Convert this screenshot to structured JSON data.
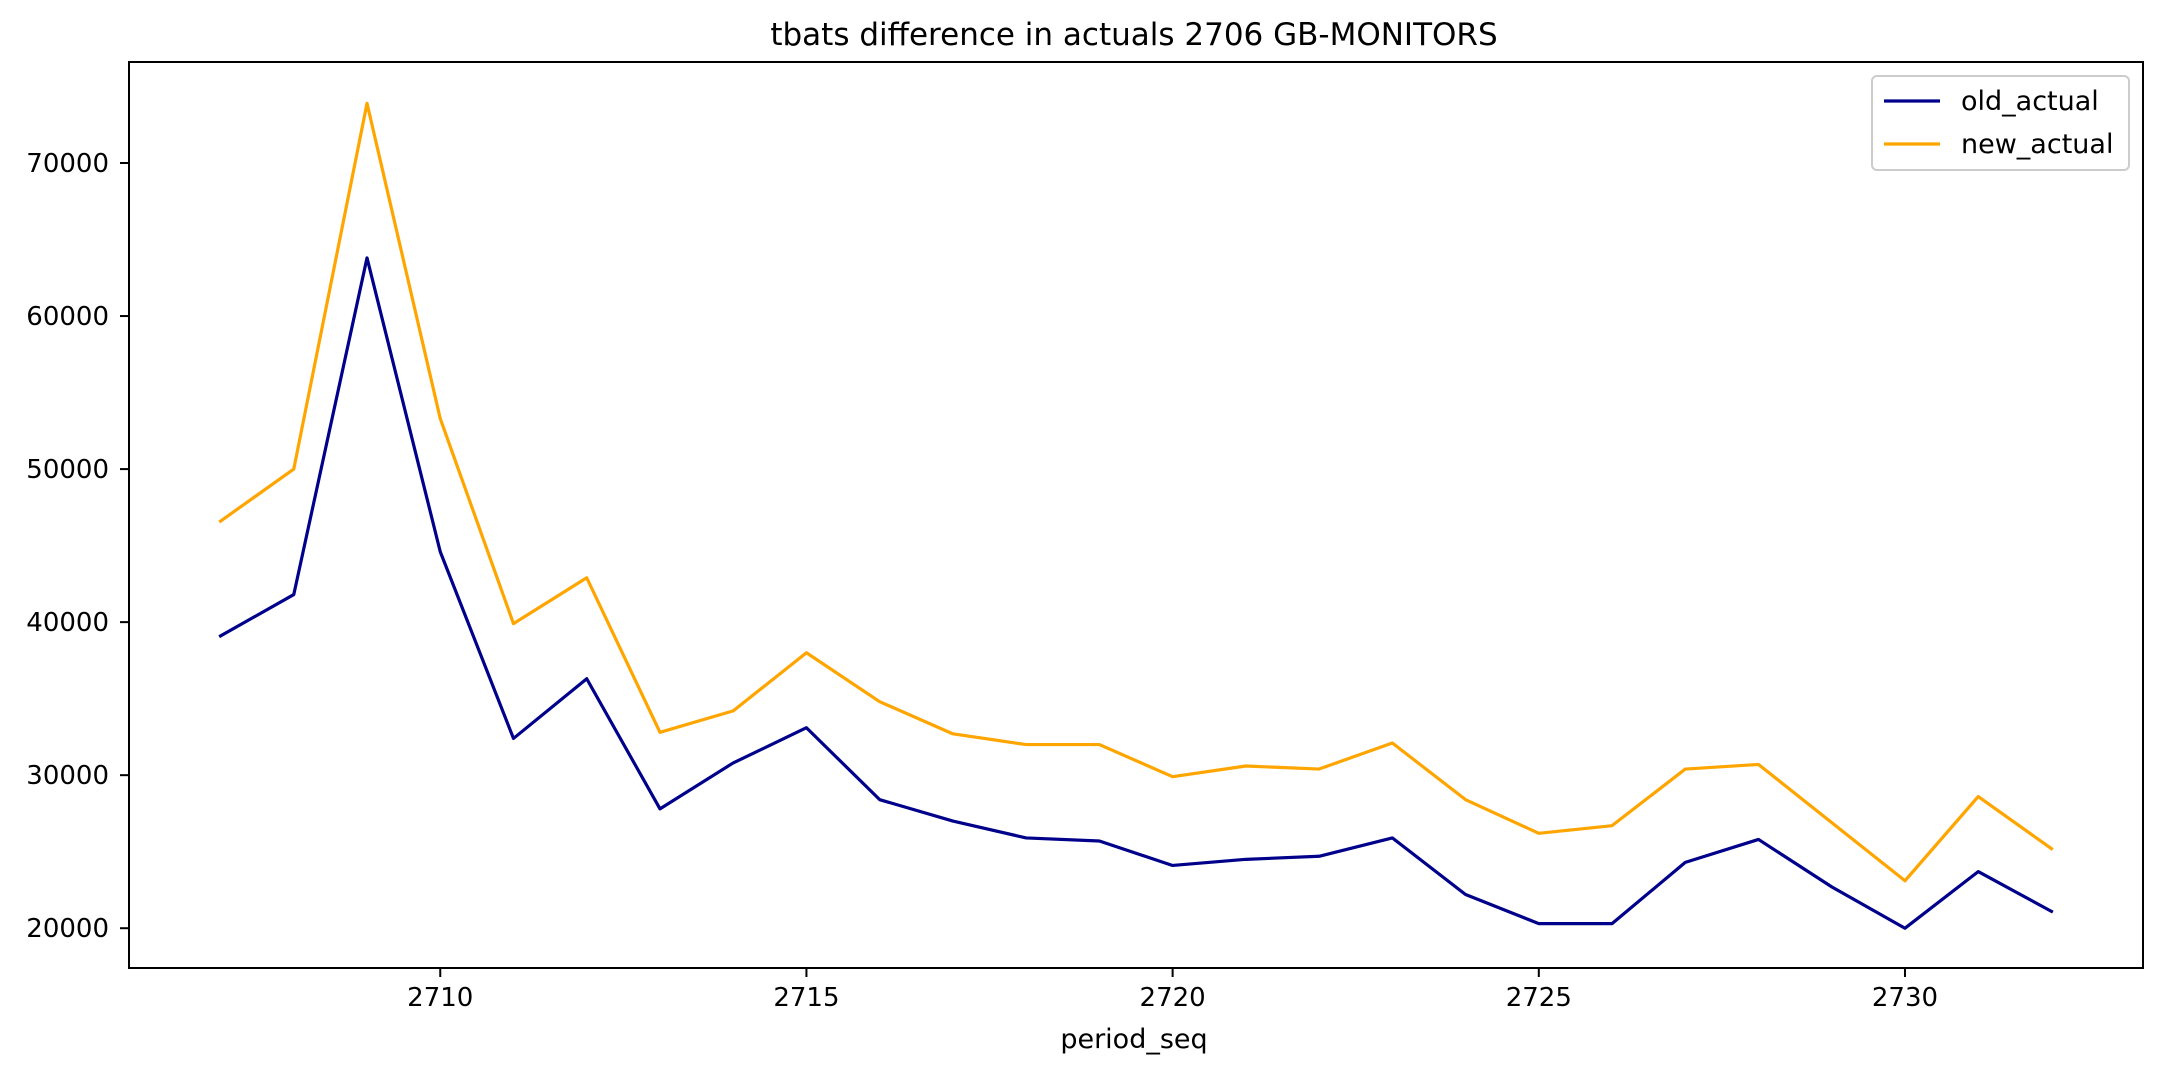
{
  "chart_data": {
    "type": "line",
    "title": "tbats difference in actuals 2706 GB-MONITORS",
    "xlabel": "period_seq",
    "ylabel": "",
    "x": [
      2707,
      2708,
      2709,
      2710,
      2711,
      2712,
      2713,
      2714,
      2715,
      2716,
      2717,
      2718,
      2719,
      2720,
      2721,
      2722,
      2723,
      2724,
      2725,
      2726,
      2727,
      2728,
      2729,
      2730,
      2731,
      2732
    ],
    "xlim": [
      2705.75,
      2733.25
    ],
    "ylim": [
      17400,
      76600
    ],
    "xticks": [
      2710,
      2715,
      2720,
      2725,
      2730
    ],
    "yticks": [
      20000,
      30000,
      40000,
      50000,
      60000,
      70000
    ],
    "grid": false,
    "legend_position": "top-right",
    "series": [
      {
        "name": "old_actual",
        "color": "#00008b",
        "values": [
          39100,
          41800,
          63800,
          44600,
          32400,
          36300,
          27800,
          30800,
          33100,
          28400,
          27000,
          25900,
          25700,
          24100,
          24500,
          24700,
          25900,
          22200,
          20300,
          20300,
          24300,
          25800,
          22700,
          20000,
          23700,
          21100
        ]
      },
      {
        "name": "new_actual",
        "color": "#ffa500",
        "values": [
          46600,
          50000,
          73900,
          53300,
          39900,
          42900,
          32800,
          34200,
          38000,
          34800,
          32700,
          32000,
          32000,
          29900,
          30600,
          30400,
          32100,
          28400,
          26200,
          26700,
          30400,
          30700,
          26900,
          23100,
          28600,
          25200
        ]
      }
    ]
  }
}
